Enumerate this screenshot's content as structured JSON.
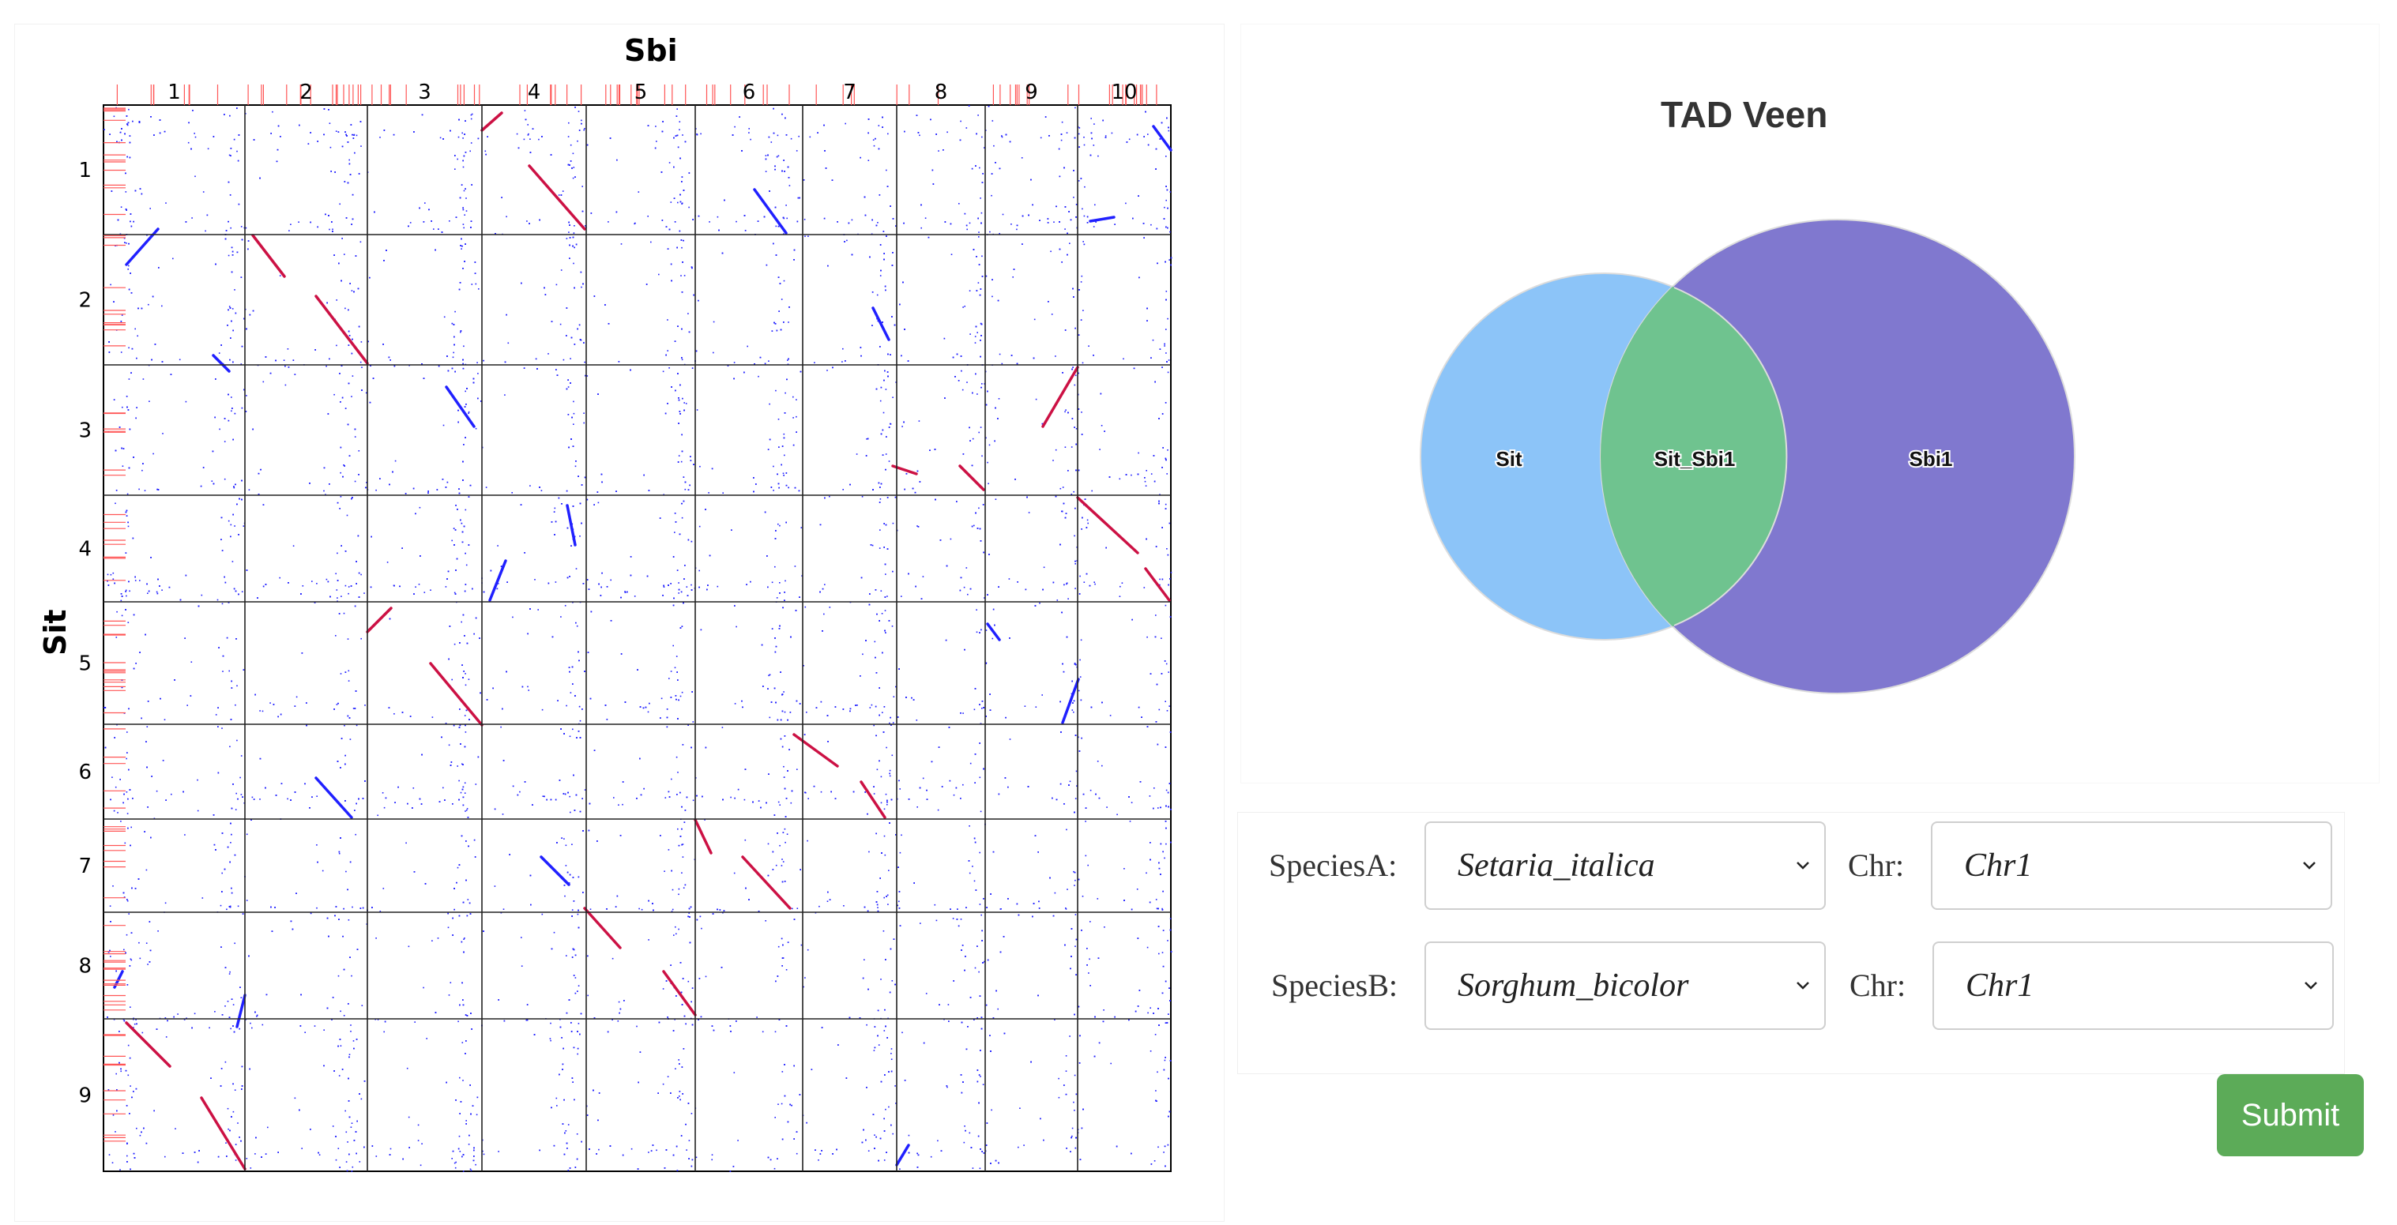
{
  "dotplot": {
    "x_title": "Sbi",
    "y_title": "Sit",
    "x_ticks": [
      "1",
      "2",
      "3",
      "4",
      "5",
      "6",
      "7",
      "8",
      "9",
      "10"
    ],
    "y_ticks": [
      "1",
      "2",
      "3",
      "4",
      "5",
      "6",
      "7",
      "8",
      "9"
    ],
    "colors": {
      "dots": "#2020ff",
      "diag": "#cc1144",
      "grid": "#222222",
      "tad_marks": "#ff5555"
    }
  },
  "venn": {
    "title": "TAD Veen",
    "labels": {
      "left": "Sit",
      "overlap": "Sit_Sbi1",
      "right": "Sbi1"
    },
    "colors": {
      "left": "#8cc4f8",
      "right": "#8078cf",
      "overlap": "#6fc38f"
    }
  },
  "form": {
    "speciesA_label": "SpeciesA:",
    "speciesA_value": "Setaria_italica",
    "chrA_label": "Chr:",
    "chrA_value": "Chr1",
    "speciesB_label": "SpeciesB:",
    "speciesB_value": "Sorghum_bicolor",
    "chrB_label": "Chr:",
    "chrB_value": "Chr1",
    "submit_label": "Submit"
  }
}
